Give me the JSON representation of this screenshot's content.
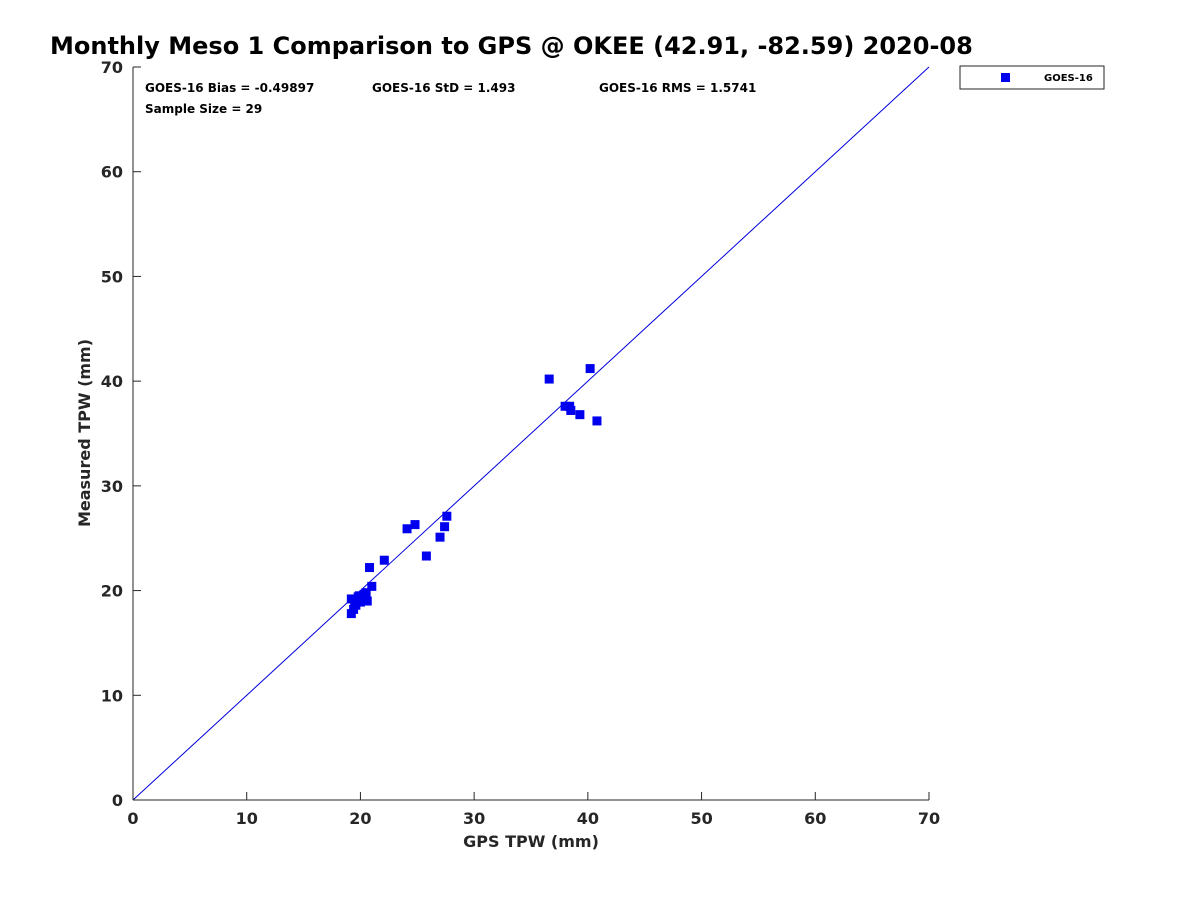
{
  "chart_data": {
    "type": "scatter",
    "title": "Monthly Meso 1 Comparison to GPS @ OKEE (42.91, -82.59) 2020-08",
    "xlabel": "GPS TPW (mm)",
    "ylabel": "Measured TPW (mm)",
    "xlim": [
      0,
      70
    ],
    "ylim": [
      0,
      70
    ],
    "xticks": [
      0,
      10,
      20,
      30,
      40,
      50,
      60,
      70
    ],
    "yticks": [
      0,
      10,
      20,
      30,
      40,
      50,
      60,
      70
    ],
    "grid": false,
    "legend_position": "outside-top-right",
    "colors": {
      "series": "#0000ee",
      "line": "#0000dd",
      "axis": "#262626"
    },
    "stats": {
      "bias": "GOES-16 Bias = -0.49897",
      "std": "GOES-16 StD = 1.493",
      "rms": "GOES-16 RMS = 1.5741",
      "sample": "Sample Size = 29"
    },
    "reference_line": {
      "name": "1:1 line",
      "x": [
        0,
        70
      ],
      "y": [
        0,
        70
      ]
    },
    "series": [
      {
        "name": "GOES-16",
        "marker": "square",
        "points": [
          [
            19.2,
            19.2
          ],
          [
            19.2,
            17.8
          ],
          [
            19.4,
            18.2
          ],
          [
            19.5,
            18.8
          ],
          [
            19.7,
            19.0
          ],
          [
            19.8,
            19.4
          ],
          [
            20.0,
            18.9
          ],
          [
            20.2,
            19.2
          ],
          [
            20.3,
            19.6
          ],
          [
            20.5,
            19.8
          ],
          [
            20.6,
            19.0
          ],
          [
            20.8,
            22.2
          ],
          [
            21.0,
            20.4
          ],
          [
            22.1,
            22.9
          ],
          [
            24.1,
            25.9
          ],
          [
            24.8,
            26.3
          ],
          [
            25.8,
            23.3
          ],
          [
            27.0,
            25.1
          ],
          [
            27.4,
            26.1
          ],
          [
            27.6,
            27.1
          ],
          [
            36.6,
            40.2
          ],
          [
            38.0,
            37.6
          ],
          [
            38.4,
            37.6
          ],
          [
            38.5,
            37.2
          ],
          [
            39.3,
            36.8
          ],
          [
            40.2,
            41.2
          ],
          [
            40.8,
            36.2
          ],
          [
            19.9,
            19.5
          ],
          [
            19.6,
            18.6
          ]
        ]
      }
    ]
  }
}
